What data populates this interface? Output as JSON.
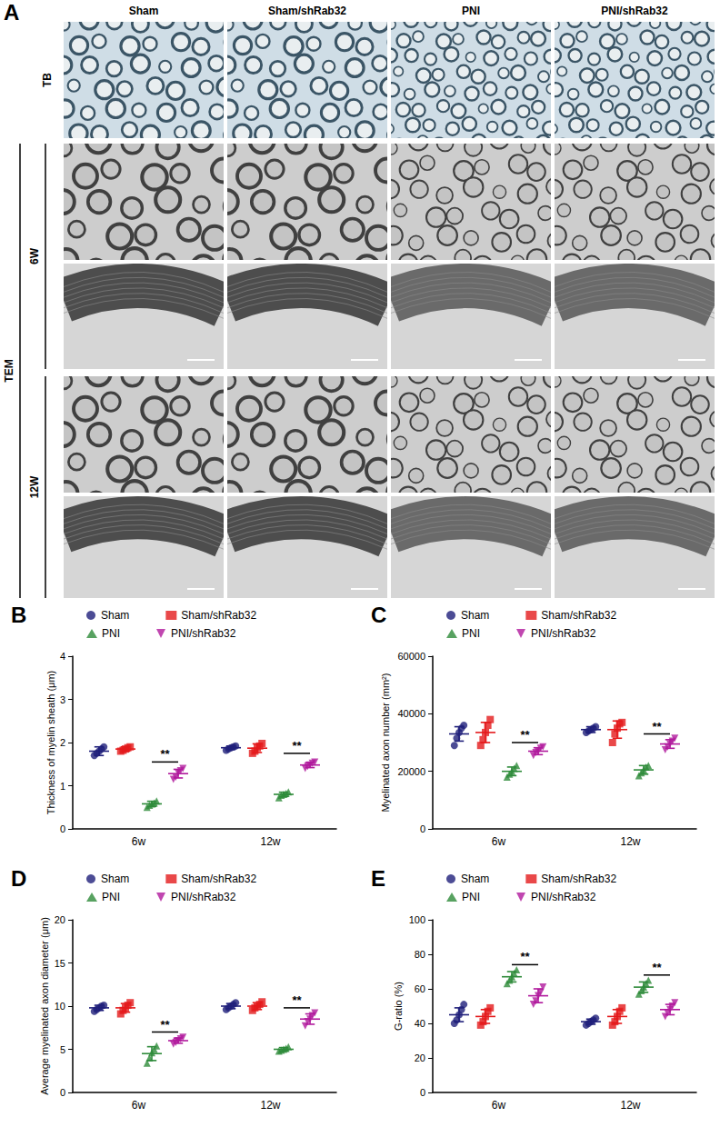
{
  "panel_a": {
    "label": "A",
    "columns": [
      "Sham",
      "Sham/shRab32",
      "PNI",
      "PNI/shRab32"
    ],
    "row_label": "TB",
    "group_label": "TEM",
    "time_labels": [
      "6W",
      "12W"
    ]
  },
  "chart_data": [
    {
      "type": "scatter",
      "panel_label": "B",
      "y_label": "Thickness of myelin sheath (μm)",
      "categories": [
        "6w",
        "12w"
      ],
      "ylim": [
        0,
        4
      ],
      "yticks": [
        0,
        1,
        2,
        3,
        4
      ],
      "grid": false,
      "legend": "top",
      "series": [
        {
          "name": "Sham",
          "color": "#1f1f7a",
          "marker": "circle",
          "values": [
            1.8,
            1.88
          ],
          "error": [
            0.1,
            0.04
          ],
          "points": [
            [
              1.7,
              1.75,
              1.8,
              1.85,
              1.9
            ],
            [
              1.82,
              1.85,
              1.88,
              1.9,
              1.92
            ]
          ]
        },
        {
          "name": "Sham/shRab32",
          "color": "#e41a1c",
          "marker": "square",
          "values": [
            1.85,
            1.87
          ],
          "error": [
            0.05,
            0.1
          ],
          "points": [
            [
              1.8,
              1.82,
              1.85,
              1.88,
              1.9
            ],
            [
              1.75,
              1.8,
              1.88,
              1.92,
              1.98
            ]
          ]
        },
        {
          "name": "PNI",
          "color": "#2e8b3a",
          "marker": "triangle",
          "values": [
            0.58,
            0.8
          ],
          "error": [
            0.06,
            0.05
          ],
          "points": [
            [
              0.5,
              0.55,
              0.58,
              0.6,
              0.65
            ],
            [
              0.72,
              0.78,
              0.8,
              0.82,
              0.86
            ]
          ]
        },
        {
          "name": "PNI/shRab32",
          "color": "#b0199c",
          "marker": "triangle-down",
          "values": [
            1.28,
            1.48
          ],
          "error": [
            0.1,
            0.06
          ],
          "points": [
            [
              1.15,
              1.2,
              1.3,
              1.35,
              1.4
            ],
            [
              1.4,
              1.45,
              1.48,
              1.52,
              1.55
            ]
          ]
        }
      ],
      "annotations": [
        {
          "text": "**",
          "category": "6w",
          "from": "PNI",
          "to": "PNI/shRab32",
          "y": 1.55
        },
        {
          "text": "**",
          "category": "12w",
          "from": "PNI",
          "to": "PNI/shRab32",
          "y": 1.75
        }
      ]
    },
    {
      "type": "scatter",
      "panel_label": "C",
      "y_label": "Myelinated axon number (mm²)",
      "categories": [
        "6w",
        "12w"
      ],
      "ylim": [
        0,
        60000
      ],
      "yticks": [
        0,
        20000,
        40000,
        60000
      ],
      "grid": false,
      "legend": "top",
      "series": [
        {
          "name": "Sham",
          "color": "#1f1f7a",
          "marker": "circle",
          "values": [
            33000,
            34500
          ],
          "error": [
            2500,
            1000
          ],
          "points": [
            [
              29000,
              31500,
              33500,
              35000,
              36000
            ],
            [
              33500,
              34000,
              34500,
              35000,
              35500
            ]
          ]
        },
        {
          "name": "Sham/shRab32",
          "color": "#e41a1c",
          "marker": "square",
          "values": [
            33500,
            34500
          ],
          "error": [
            3500,
            3000
          ],
          "points": [
            [
              29000,
              31000,
              33500,
              36000,
              38000
            ],
            [
              30000,
              33000,
              35000,
              36500,
              37000
            ]
          ]
        },
        {
          "name": "PNI",
          "color": "#2e8b3a",
          "marker": "triangle",
          "values": [
            20000,
            20500
          ],
          "error": [
            1500,
            1500
          ],
          "points": [
            [
              18000,
              19000,
              20000,
              21000,
              22000
            ],
            [
              18500,
              19500,
              20500,
              21500,
              22000
            ]
          ]
        },
        {
          "name": "PNI/shRab32",
          "color": "#b0199c",
          "marker": "triangle-down",
          "values": [
            27000,
            29500
          ],
          "error": [
            1200,
            1500
          ],
          "points": [
            [
              25500,
              26500,
              27000,
              28000,
              28500
            ],
            [
              27500,
              28500,
              29500,
              30500,
              31500
            ]
          ]
        }
      ],
      "annotations": [
        {
          "text": "**",
          "category": "6w",
          "from": "PNI",
          "to": "PNI/shRab32",
          "y": 30000
        },
        {
          "text": "**",
          "category": "12w",
          "from": "PNI",
          "to": "PNI/shRab32",
          "y": 33000
        }
      ]
    },
    {
      "type": "scatter",
      "panel_label": "D",
      "y_label": "Average myelinated axon diameter (μm)",
      "categories": [
        "6w",
        "12w"
      ],
      "ylim": [
        0,
        20
      ],
      "yticks": [
        0,
        5,
        10,
        15,
        20
      ],
      "grid": false,
      "legend": "top",
      "series": [
        {
          "name": "Sham",
          "color": "#1f1f7a",
          "marker": "circle",
          "values": [
            9.8,
            10
          ],
          "error": [
            0.3,
            0.3
          ],
          "points": [
            [
              9.4,
              9.6,
              9.8,
              10,
              10.1
            ],
            [
              9.6,
              9.8,
              10,
              10.2,
              10.4
            ]
          ]
        },
        {
          "name": "Sham/shRab32",
          "color": "#e41a1c",
          "marker": "square",
          "values": [
            9.8,
            10
          ],
          "error": [
            0.5,
            0.4
          ],
          "points": [
            [
              9.1,
              9.5,
              9.8,
              10.1,
              10.4
            ],
            [
              9.5,
              9.8,
              10,
              10.2,
              10.5
            ]
          ]
        },
        {
          "name": "PNI",
          "color": "#2e8b3a",
          "marker": "triangle",
          "values": [
            4.5,
            5
          ],
          "error": [
            0.8,
            0.2
          ],
          "points": [
            [
              3.4,
              4,
              4.6,
              5,
              5.4
            ],
            [
              4.8,
              4.9,
              5,
              5.1,
              5.3
            ]
          ]
        },
        {
          "name": "PNI/shRab32",
          "color": "#b0199c",
          "marker": "triangle-down",
          "values": [
            6,
            8.5
          ],
          "error": [
            0.3,
            0.6
          ],
          "points": [
            [
              5.6,
              5.8,
              6,
              6.2,
              6.4
            ],
            [
              7.7,
              8.2,
              8.5,
              8.9,
              9.2
            ]
          ]
        }
      ],
      "annotations": [
        {
          "text": "**",
          "category": "6w",
          "from": "PNI",
          "to": "PNI/shRab32",
          "y": 7
        },
        {
          "text": "**",
          "category": "12w",
          "from": "PNI",
          "to": "PNI/shRab32",
          "y": 9.8
        }
      ]
    },
    {
      "type": "scatter",
      "panel_label": "E",
      "y_label": "G-ratio (%)",
      "categories": [
        "6w",
        "12w"
      ],
      "ylim": [
        0,
        100
      ],
      "yticks": [
        0,
        20,
        40,
        60,
        80,
        100
      ],
      "grid": false,
      "legend": "top",
      "series": [
        {
          "name": "Sham",
          "color": "#1f1f7a",
          "marker": "circle",
          "values": [
            45,
            41
          ],
          "error": [
            4,
            1.5
          ],
          "points": [
            [
              40,
              42,
              45,
              48,
              51
            ],
            [
              39,
              40,
              41,
              42,
              43
            ]
          ]
        },
        {
          "name": "Sham/shRab32",
          "color": "#e41a1c",
          "marker": "square",
          "values": [
            44,
            44
          ],
          "error": [
            4,
            4
          ],
          "points": [
            [
              39,
              41,
              44,
              47,
              49
            ],
            [
              39,
              41,
              44,
              47,
              49
            ]
          ]
        },
        {
          "name": "PNI",
          "color": "#2e8b3a",
          "marker": "triangle",
          "values": [
            67,
            61
          ],
          "error": [
            3,
            3
          ],
          "points": [
            [
              63,
              65,
              67,
              69,
              71
            ],
            [
              57,
              59,
              61,
              63,
              65
            ]
          ]
        },
        {
          "name": "PNI/shRab32",
          "color": "#b0199c",
          "marker": "triangle-down",
          "values": [
            56,
            48
          ],
          "error": [
            4,
            3
          ],
          "points": [
            [
              51,
              53,
              56,
              58,
              61
            ],
            [
              44,
              46,
              48,
              50,
              52
            ]
          ]
        }
      ],
      "annotations": [
        {
          "text": "**",
          "category": "6w",
          "from": "PNI",
          "to": "PNI/shRab32",
          "y": 74
        },
        {
          "text": "**",
          "category": "12w",
          "from": "PNI",
          "to": "PNI/shRab32",
          "y": 68
        }
      ]
    }
  ]
}
